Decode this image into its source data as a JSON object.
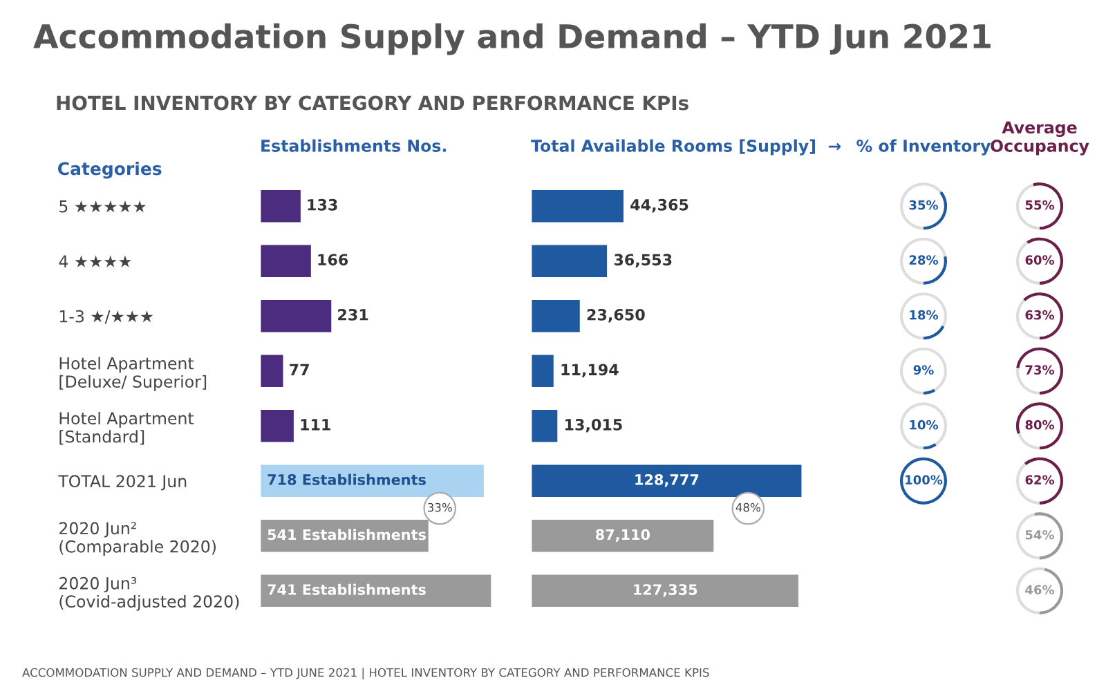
{
  "chart_data": [
    {
      "type": "bar",
      "orientation": "horizontal",
      "title": "Establishments Nos.",
      "ylabel": "Categories",
      "annotations": [
        "Accommodation Supply and Demand – YTD Jun 2021",
        "HOTEL INVENTORY BY CATEGORY AND PERFORMANCE KPIs",
        "33%",
        "ACCOMMODATION SUPPLY AND DEMAND – YTD JUNE 2021 | HOTEL INVENTORY BY CATEGORY AND PERFORMANCE KPIS"
      ],
      "categories": [
        "5 ★★★★★",
        "4 ★★★★",
        "1-3 ★/★★★",
        "Hotel Apartment\n[Deluxe/ Superior]",
        "Hotel Apartment\n[Standard]",
        "TOTAL 2021 Jun",
        "2020 Jun²\n(Comparable 2020)",
        "2020 Jun³\n(Covid-adjusted 2020)"
      ],
      "values": [
        133,
        166,
        231,
        77,
        111,
        718,
        541,
        741
      ],
      "colors": [
        "#4b2c7f",
        "#4b2c7f",
        "#4b2c7f",
        "#4b2c7f",
        "#4b2c7f",
        "#a9d3f0",
        "#9a9a9a",
        "#9a9a9a"
      ],
      "value_labels": [
        "133",
        "166",
        "231",
        "77",
        "111",
        "718 Establishments",
        "541 Establishments",
        "741 Establishments"
      ],
      "tick_labels": "y"
    },
    {
      "type": "bar",
      "orientation": "horizontal",
      "title": "Total Available Rooms [Supply]  →",
      "annotations": [
        "48%"
      ],
      "values": [
        44365,
        36553,
        23650,
        11194,
        13015,
        128777,
        87110,
        127335
      ],
      "colors": [
        "#1f5aa0",
        "#1f5aa0",
        "#1f5aa0",
        "#1f5aa0",
        "#1f5aa0",
        "#1f5aa0",
        "#9a9a9a",
        "#9a9a9a"
      ],
      "value_labels": [
        "44,365",
        "36,553",
        "23,650",
        "11,194",
        "13,015",
        "128,777",
        "87,110",
        "127,335"
      ],
      "tick_labels": false
    },
    {
      "type": "other",
      "title": "% of Inventory",
      "values": [
        35,
        28,
        18,
        9,
        10,
        100,
        null,
        null
      ],
      "colors": [
        "#1f5aa0",
        "#1f5aa0",
        "#1f5aa0",
        "#1f5aa0",
        "#1f5aa0",
        "#1f5aa0",
        null,
        null
      ],
      "value_labels": [
        "35%",
        "28%",
        "18%",
        "9%",
        "10%",
        "100%",
        null,
        null
      ]
    },
    {
      "type": "other",
      "title": "Average\nOccupancy",
      "values": [
        55,
        60,
        63,
        73,
        80,
        62,
        54,
        46
      ],
      "colors": [
        "#6b1f4b",
        "#6b1f4b",
        "#6b1f4b",
        "#6b1f4b",
        "#6b1f4b",
        "#6b1f4b",
        "#9a9a9a",
        "#9a9a9a"
      ],
      "value_labels": [
        "55%",
        "60%",
        "63%",
        "73%",
        "80%",
        "62%",
        "54%",
        "46%"
      ]
    }
  ]
}
